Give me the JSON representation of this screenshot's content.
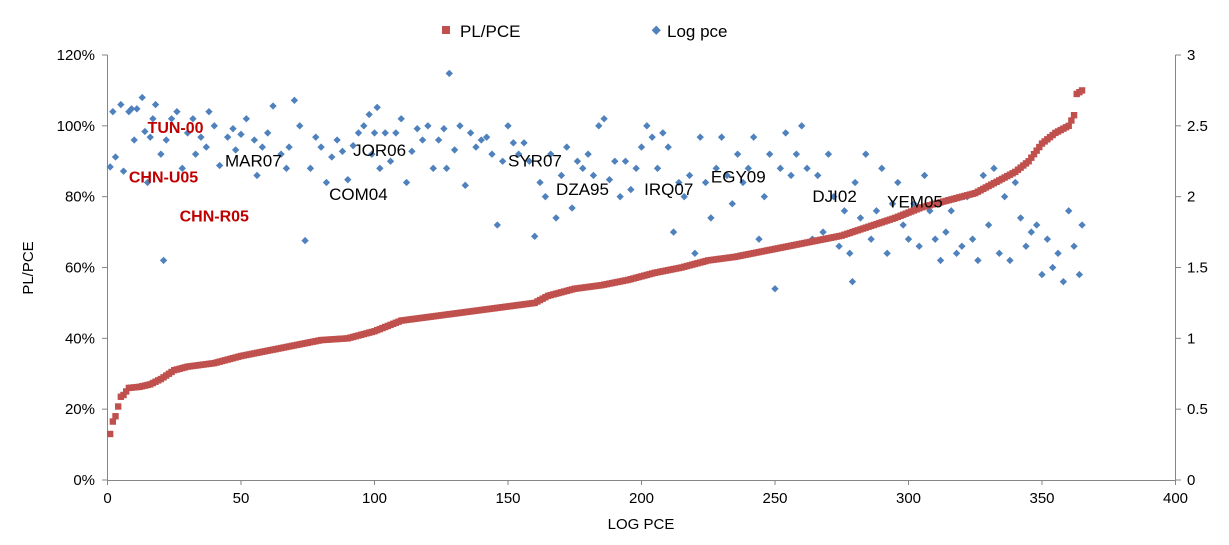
{
  "chart_data": {
    "type": "scatter",
    "xlabel": "LOG PCE",
    "ylabel": "PL/PCE",
    "xlim": [
      0,
      400
    ],
    "ylim": [
      0,
      1.2
    ],
    "y2lim": [
      0,
      3
    ],
    "grid": false,
    "legend_position": "top-center",
    "x_ticks": [
      "0",
      "50",
      "100",
      "150",
      "200",
      "250",
      "300",
      "350",
      "400"
    ],
    "y_ticks": [
      "0%",
      "20%",
      "40%",
      "60%",
      "80%",
      "100%",
      "120%"
    ],
    "y2_ticks": [
      "0",
      "0.5",
      "1",
      "1.5",
      "2",
      "2.5",
      "3"
    ],
    "colors": {
      "pl_pce": "#c0504d",
      "log_pce": "#4f81bd",
      "highlight": "#c00000"
    },
    "series": [
      {
        "name": "PL/PCE",
        "marker": "square",
        "axis": "left",
        "points": [
          [
            1,
            0.13
          ],
          [
            2,
            0.165
          ],
          [
            3,
            0.18
          ],
          [
            5,
            0.235
          ],
          [
            6,
            0.24
          ],
          [
            8,
            0.26
          ],
          [
            12,
            0.263
          ],
          [
            16,
            0.27
          ],
          [
            20,
            0.285
          ],
          [
            25,
            0.31
          ],
          [
            30,
            0.32
          ],
          [
            40,
            0.33
          ],
          [
            50,
            0.35
          ],
          [
            60,
            0.365
          ],
          [
            70,
            0.38
          ],
          [
            80,
            0.395
          ],
          [
            90,
            0.4
          ],
          [
            100,
            0.42
          ],
          [
            110,
            0.45
          ],
          [
            120,
            0.46
          ],
          [
            130,
            0.47
          ],
          [
            140,
            0.48
          ],
          [
            150,
            0.49
          ],
          [
            160,
            0.5
          ],
          [
            165,
            0.52
          ],
          [
            175,
            0.54
          ],
          [
            185,
            0.55
          ],
          [
            195,
            0.565
          ],
          [
            205,
            0.585
          ],
          [
            215,
            0.6
          ],
          [
            225,
            0.62
          ],
          [
            235,
            0.63
          ],
          [
            245,
            0.645
          ],
          [
            255,
            0.66
          ],
          [
            265,
            0.675
          ],
          [
            275,
            0.69
          ],
          [
            285,
            0.715
          ],
          [
            295,
            0.74
          ],
          [
            305,
            0.77
          ],
          [
            315,
            0.79
          ],
          [
            325,
            0.81
          ],
          [
            330,
            0.83
          ],
          [
            340,
            0.87
          ],
          [
            345,
            0.9
          ],
          [
            350,
            0.95
          ],
          [
            355,
            0.98
          ],
          [
            360,
            1.0
          ],
          [
            362,
            1.03
          ],
          [
            363,
            1.09
          ],
          [
            365,
            1.1
          ]
        ]
      },
      {
        "name": "Log pce",
        "marker": "diamond",
        "axis": "right",
        "points": [
          [
            1,
            2.21
          ],
          [
            2,
            2.6
          ],
          [
            3,
            2.28
          ],
          [
            5,
            2.65
          ],
          [
            6,
            2.18
          ],
          [
            8,
            2.6
          ],
          [
            9,
            2.62
          ],
          [
            10,
            2.4
          ],
          [
            11,
            2.62
          ],
          [
            13,
            2.7
          ],
          [
            14,
            2.46
          ],
          [
            15,
            2.1
          ],
          [
            16,
            2.42
          ],
          [
            17,
            2.55
          ],
          [
            18,
            2.65
          ],
          [
            20,
            2.3
          ],
          [
            21,
            1.55
          ],
          [
            22,
            2.4
          ],
          [
            24,
            2.55
          ],
          [
            26,
            2.6
          ],
          [
            28,
            2.2
          ],
          [
            30,
            2.45
          ],
          [
            32,
            2.55
          ],
          [
            33,
            2.3
          ],
          [
            35,
            2.42
          ],
          [
            37,
            2.35
          ],
          [
            38,
            2.6
          ],
          [
            40,
            2.5
          ],
          [
            42,
            2.22
          ],
          [
            45,
            2.42
          ],
          [
            47,
            2.48
          ],
          [
            48,
            2.33
          ],
          [
            50,
            2.44
          ],
          [
            52,
            2.55
          ],
          [
            55,
            2.4
          ],
          [
            56,
            2.15
          ],
          [
            58,
            2.35
          ],
          [
            60,
            2.45
          ],
          [
            62,
            2.64
          ],
          [
            65,
            2.3
          ],
          [
            67,
            2.2
          ],
          [
            68,
            2.35
          ],
          [
            70,
            2.68
          ],
          [
            72,
            2.5
          ],
          [
            74,
            1.69
          ],
          [
            76,
            2.2
          ],
          [
            78,
            2.42
          ],
          [
            80,
            2.35
          ],
          [
            82,
            2.1
          ],
          [
            84,
            2.28
          ],
          [
            86,
            2.4
          ],
          [
            88,
            2.32
          ],
          [
            90,
            2.12
          ],
          [
            92,
            2.36
          ],
          [
            94,
            2.45
          ],
          [
            96,
            2.5
          ],
          [
            98,
            2.58
          ],
          [
            99,
            2.3
          ],
          [
            100,
            2.45
          ],
          [
            101,
            2.63
          ],
          [
            102,
            2.2
          ],
          [
            104,
            2.45
          ],
          [
            106,
            2.25
          ],
          [
            108,
            2.45
          ],
          [
            110,
            2.55
          ],
          [
            112,
            2.1
          ],
          [
            114,
            2.32
          ],
          [
            116,
            2.48
          ],
          [
            118,
            2.4
          ],
          [
            120,
            2.5
          ],
          [
            122,
            2.2
          ],
          [
            124,
            2.4
          ],
          [
            126,
            2.48
          ],
          [
            127,
            2.2
          ],
          [
            128,
            2.87
          ],
          [
            130,
            2.33
          ],
          [
            132,
            2.5
          ],
          [
            134,
            2.08
          ],
          [
            136,
            2.45
          ],
          [
            138,
            2.35
          ],
          [
            140,
            2.4
          ],
          [
            142,
            2.42
          ],
          [
            144,
            2.3
          ],
          [
            146,
            1.8
          ],
          [
            148,
            2.25
          ],
          [
            150,
            2.5
          ],
          [
            152,
            2.38
          ],
          [
            154,
            2.3
          ],
          [
            156,
            2.38
          ],
          [
            158,
            2.25
          ],
          [
            160,
            1.72
          ],
          [
            162,
            2.1
          ],
          [
            164,
            2.0
          ],
          [
            166,
            2.3
          ],
          [
            168,
            1.85
          ],
          [
            170,
            2.15
          ],
          [
            172,
            2.35
          ],
          [
            174,
            1.92
          ],
          [
            176,
            2.25
          ],
          [
            178,
            2.2
          ],
          [
            180,
            2.3
          ],
          [
            182,
            2.15
          ],
          [
            184,
            2.5
          ],
          [
            186,
            2.55
          ],
          [
            188,
            2.12
          ],
          [
            190,
            2.25
          ],
          [
            192,
            2.0
          ],
          [
            194,
            2.25
          ],
          [
            196,
            2.05
          ],
          [
            198,
            2.2
          ],
          [
            200,
            2.35
          ],
          [
            202,
            2.5
          ],
          [
            204,
            2.42
          ],
          [
            206,
            2.2
          ],
          [
            208,
            2.45
          ],
          [
            210,
            2.35
          ],
          [
            212,
            1.75
          ],
          [
            214,
            2.1
          ],
          [
            216,
            2.0
          ],
          [
            218,
            2.15
          ],
          [
            220,
            1.6
          ],
          [
            222,
            2.42
          ],
          [
            224,
            2.1
          ],
          [
            226,
            1.85
          ],
          [
            228,
            2.2
          ],
          [
            230,
            2.42
          ],
          [
            232,
            2.15
          ],
          [
            234,
            1.95
          ],
          [
            236,
            2.3
          ],
          [
            238,
            2.1
          ],
          [
            240,
            2.2
          ],
          [
            242,
            2.42
          ],
          [
            244,
            1.7
          ],
          [
            246,
            2.0
          ],
          [
            248,
            2.3
          ],
          [
            250,
            1.35
          ],
          [
            252,
            2.2
          ],
          [
            254,
            2.45
          ],
          [
            256,
            2.15
          ],
          [
            258,
            2.3
          ],
          [
            260,
            2.5
          ],
          [
            262,
            2.2
          ],
          [
            264,
            1.7
          ],
          [
            266,
            2.15
          ],
          [
            268,
            1.75
          ],
          [
            270,
            2.3
          ],
          [
            272,
            2.0
          ],
          [
            274,
            1.65
          ],
          [
            276,
            1.9
          ],
          [
            278,
            1.6
          ],
          [
            279,
            1.4
          ],
          [
            280,
            2.1
          ],
          [
            282,
            1.85
          ],
          [
            284,
            2.3
          ],
          [
            286,
            1.7
          ],
          [
            288,
            1.9
          ],
          [
            290,
            2.2
          ],
          [
            292,
            1.6
          ],
          [
            294,
            1.95
          ],
          [
            296,
            2.1
          ],
          [
            298,
            1.8
          ],
          [
            300,
            1.7
          ],
          [
            302,
            1.95
          ],
          [
            304,
            1.65
          ],
          [
            306,
            2.15
          ],
          [
            308,
            1.9
          ],
          [
            310,
            1.7
          ],
          [
            312,
            1.55
          ],
          [
            314,
            1.75
          ],
          [
            316,
            1.9
          ],
          [
            318,
            1.6
          ],
          [
            320,
            1.65
          ],
          [
            322,
            2.0
          ],
          [
            324,
            1.7
          ],
          [
            326,
            1.55
          ],
          [
            328,
            2.15
          ],
          [
            330,
            1.8
          ],
          [
            332,
            2.2
          ],
          [
            334,
            1.6
          ],
          [
            336,
            2.0
          ],
          [
            338,
            1.55
          ],
          [
            340,
            2.1
          ],
          [
            342,
            1.85
          ],
          [
            344,
            1.65
          ],
          [
            346,
            1.75
          ],
          [
            348,
            1.8
          ],
          [
            350,
            1.45
          ],
          [
            352,
            1.7
          ],
          [
            354,
            1.5
          ],
          [
            356,
            1.6
          ],
          [
            358,
            1.4
          ],
          [
            360,
            1.9
          ],
          [
            362,
            1.65
          ],
          [
            364,
            1.45
          ],
          [
            365,
            1.8
          ]
        ]
      }
    ],
    "annotations": [
      {
        "text": "TUN-00",
        "x": 15,
        "y": 0.98,
        "highlight": true
      },
      {
        "text": "CHN-U05",
        "x": 8,
        "y": 0.84,
        "highlight": true
      },
      {
        "text": "CHN-R05",
        "x": 27,
        "y": 0.73,
        "highlight": true
      },
      {
        "text": "MAR07",
        "x": 44,
        "y": 0.885,
        "highlight": false
      },
      {
        "text": "JOR06",
        "x": 92,
        "y": 0.915,
        "highlight": false
      },
      {
        "text": "COM04",
        "x": 83,
        "y": 0.79,
        "highlight": false
      },
      {
        "text": "SYR07",
        "x": 150,
        "y": 0.885,
        "highlight": false
      },
      {
        "text": "DZA95",
        "x": 168,
        "y": 0.805,
        "highlight": false
      },
      {
        "text": "IRQ07",
        "x": 201,
        "y": 0.805,
        "highlight": false
      },
      {
        "text": "EGY09",
        "x": 226,
        "y": 0.84,
        "highlight": false
      },
      {
        "text": "DJI02",
        "x": 264,
        "y": 0.785,
        "highlight": false
      },
      {
        "text": "YEM05",
        "x": 292,
        "y": 0.77,
        "highlight": false
      }
    ]
  }
}
